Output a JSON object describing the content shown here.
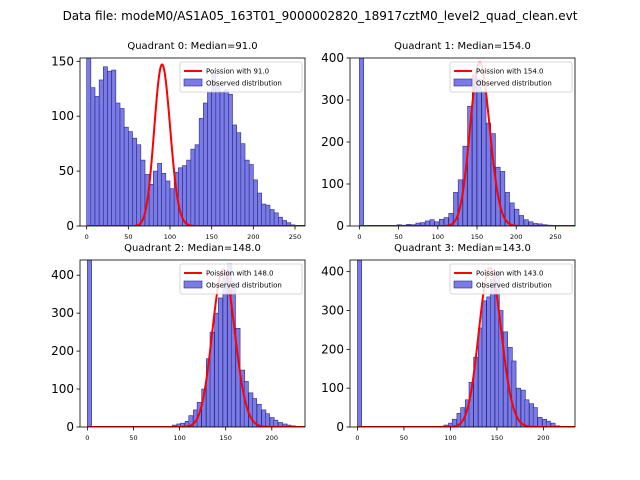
{
  "figure": {
    "suptitle": "Data file: modeM0/AS1A05_163T01_9000002820_18917cztM0_level2_quad_clean.evt"
  },
  "colors": {
    "bar_fill": "#7b7be6",
    "bar_edge": "#2a2a8a",
    "poisson_line": "#ff0000",
    "axes": "#000000"
  },
  "legend": {
    "poisson_prefix": "Poission with ",
    "observed_label": "Observed distribution"
  },
  "chart_data": [
    {
      "type": "bar",
      "title": "Quadrant 0: Median=91.0",
      "median": 91.0,
      "poisson_label": "Poission with 91.0",
      "legend_position": "top-right",
      "xlim": [
        -8,
        262
      ],
      "ylim": [
        0,
        153
      ],
      "xticks": [
        0,
        50,
        100,
        150,
        200,
        250
      ],
      "yticks": [
        0,
        50,
        100,
        150
      ],
      "bin_width": 5,
      "bins_start": [
        0,
        5,
        10,
        15,
        20,
        25,
        30,
        35,
        40,
        45,
        50,
        55,
        60,
        65,
        70,
        75,
        80,
        85,
        90,
        95,
        100,
        105,
        110,
        115,
        120,
        125,
        130,
        135,
        140,
        145,
        150,
        155,
        160,
        165,
        170,
        175,
        180,
        185,
        190,
        195,
        200,
        205,
        210,
        215,
        220,
        225,
        230,
        235,
        240,
        245
      ],
      "counts": [
        153,
        126,
        118,
        133,
        145,
        141,
        142,
        112,
        107,
        90,
        86,
        80,
        74,
        60,
        47,
        38,
        50,
        57,
        48,
        41,
        34,
        49,
        53,
        55,
        60,
        70,
        74,
        98,
        112,
        122,
        140,
        128,
        122,
        124,
        120,
        92,
        85,
        75,
        60,
        56,
        42,
        30,
        20,
        19,
        15,
        12,
        8,
        5,
        3,
        1
      ],
      "poisson_mean": 91.0,
      "poisson_peak": 147
    },
    {
      "type": "bar",
      "title": "Quadrant 1: Median=154.0",
      "median": 154.0,
      "poisson_label": "Poission with 154.0",
      "legend_position": "top-right",
      "xlim": [
        -12,
        275
      ],
      "ylim": [
        0,
        400
      ],
      "xticks": [
        0,
        50,
        100,
        150,
        200,
        250
      ],
      "yticks": [
        0,
        100,
        200,
        300,
        400
      ],
      "bin_width": 5.5,
      "bins_start": [
        0,
        48,
        54,
        60,
        66,
        72,
        78,
        84,
        90,
        96,
        102,
        108,
        114,
        120,
        126,
        132,
        138,
        144,
        150,
        156,
        162,
        168,
        174,
        180,
        186,
        192,
        198,
        204,
        210,
        216,
        222,
        228,
        234,
        240,
        246,
        252,
        258
      ],
      "counts": [
        400,
        3,
        2,
        4,
        3,
        7,
        8,
        12,
        15,
        10,
        16,
        20,
        30,
        80,
        110,
        190,
        285,
        360,
        350,
        320,
        245,
        220,
        140,
        130,
        80,
        55,
        40,
        25,
        15,
        10,
        6,
        5,
        3,
        2,
        1,
        0,
        1
      ],
      "poisson_mean": 154.0,
      "poisson_peak": 390
    },
    {
      "type": "bar",
      "title": "Quadrant 2: Median=148.0",
      "median": 148.0,
      "poisson_label": "Poission with 148.0",
      "legend_position": "top-right",
      "xlim": [
        -8,
        236
      ],
      "ylim": [
        0,
        440
      ],
      "xticks": [
        0,
        50,
        100,
        150,
        200
      ],
      "yticks": [
        0,
        100,
        200,
        300,
        400
      ],
      "bin_width": 4.6,
      "bins_start": [
        0,
        92,
        97,
        101,
        106,
        110,
        115,
        119,
        124,
        129,
        133,
        138,
        142,
        147,
        152,
        156,
        161,
        166,
        170,
        175,
        179,
        184,
        189,
        193,
        198,
        202,
        207,
        212,
        216,
        221
      ],
      "counts": [
        440,
        5,
        8,
        10,
        15,
        30,
        45,
        65,
        100,
        180,
        250,
        300,
        340,
        405,
        430,
        380,
        260,
        150,
        120,
        90,
        75,
        60,
        45,
        35,
        25,
        18,
        12,
        8,
        5,
        3
      ],
      "poisson_mean": 148.0,
      "poisson_peak": 415
    },
    {
      "type": "bar",
      "title": "Quadrant 3: Median=143.0",
      "median": 143.0,
      "poisson_label": "Poission with 143.0",
      "legend_position": "top-right",
      "xlim": [
        -8,
        234
      ],
      "ylim": [
        0,
        430
      ],
      "xticks": [
        0,
        50,
        100,
        150,
        200
      ],
      "yticks": [
        0,
        100,
        200,
        300,
        400
      ],
      "bin_width": 4.6,
      "bins_start": [
        0,
        88,
        93,
        98,
        102,
        107,
        111,
        116,
        120,
        125,
        130,
        134,
        139,
        143,
        148,
        152,
        157,
        162,
        166,
        171,
        176,
        180,
        185,
        189,
        194,
        199,
        203,
        208,
        213
      ],
      "counts": [
        430,
        2,
        5,
        10,
        20,
        35,
        50,
        70,
        115,
        180,
        255,
        325,
        335,
        380,
        400,
        300,
        245,
        205,
        170,
        100,
        95,
        70,
        60,
        50,
        25,
        20,
        15,
        10,
        3
      ],
      "poisson_mean": 143.0,
      "poisson_peak": 410
    }
  ]
}
